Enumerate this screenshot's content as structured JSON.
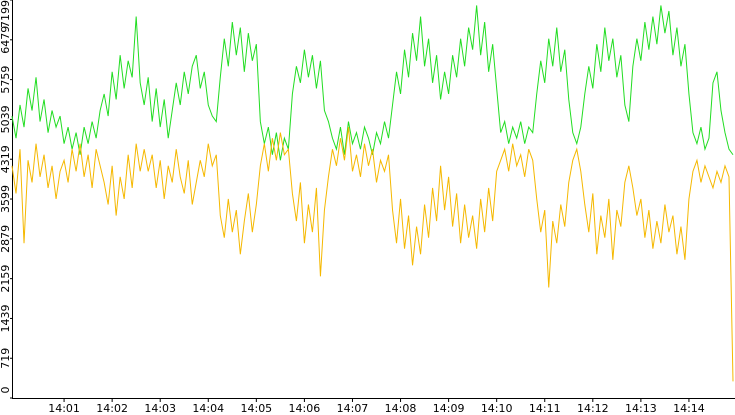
{
  "chart_data": {
    "type": "line",
    "categories": [
      null,
      null,
      null,
      null,
      null,
      null,
      null,
      null,
      null,
      null,
      null,
      null,
      null,
      "14:01",
      null,
      null,
      null,
      null,
      null,
      null,
      null,
      null,
      null,
      null,
      null,
      "14:02",
      null,
      null,
      null,
      null,
      null,
      null,
      null,
      null,
      null,
      null,
      null,
      "14:03",
      null,
      null,
      null,
      null,
      null,
      null,
      null,
      null,
      null,
      null,
      null,
      "14:04",
      null,
      null,
      null,
      null,
      null,
      null,
      null,
      null,
      null,
      null,
      null,
      "14:05",
      null,
      null,
      null,
      null,
      null,
      null,
      null,
      null,
      null,
      null,
      null,
      "14:06",
      null,
      null,
      null,
      null,
      null,
      null,
      null,
      null,
      null,
      null,
      null,
      "14:07",
      null,
      null,
      null,
      null,
      null,
      null,
      null,
      null,
      null,
      null,
      null,
      "14:08",
      null,
      null,
      null,
      null,
      null,
      null,
      null,
      null,
      null,
      null,
      null,
      "14:09",
      null,
      null,
      null,
      null,
      null,
      null,
      null,
      null,
      null,
      null,
      null,
      "14:10",
      null,
      null,
      null,
      null,
      null,
      null,
      null,
      null,
      null,
      null,
      null,
      "14:11",
      null,
      null,
      null,
      null,
      null,
      null,
      null,
      null,
      null,
      null,
      null,
      "14:12",
      null,
      null,
      null,
      null,
      null,
      null,
      null,
      null,
      null,
      null,
      null,
      "14:13",
      null,
      null,
      null,
      null,
      null,
      null,
      null,
      null,
      null,
      null,
      null,
      "14:14",
      null,
      null,
      null,
      null,
      null,
      null,
      null,
      null,
      null,
      null,
      null
    ],
    "series": [
      {
        "color": "#22dd22",
        "values": [
          5100,
          4700,
          5300,
          4900,
          5600,
          5200,
          5800,
          5000,
          5400,
          4800,
          5200,
          4900,
          5100,
          4600,
          4900,
          4500,
          4800,
          4400,
          4900,
          4600,
          5000,
          4700,
          5200,
          5500,
          5100,
          5900,
          5400,
          6200,
          5600,
          6100,
          5800,
          6900,
          5700,
          5300,
          5800,
          5000,
          5600,
          4900,
          5400,
          4700,
          5200,
          5700,
          5300,
          5900,
          5500,
          6000,
          6200,
          5600,
          5900,
          5300,
          5100,
          5000,
          5800,
          6500,
          6000,
          6800,
          6200,
          6700,
          5900,
          6600,
          6100,
          6400,
          5000,
          4600,
          4900,
          4400,
          4800,
          4300,
          4700,
          4500,
          5500,
          6000,
          5700,
          6300,
          5800,
          6200,
          5600,
          6100,
          5200,
          5000,
          4700,
          4500,
          4900,
          4400,
          5000,
          4600,
          4800,
          4500,
          4900,
          4700,
          4400,
          4800,
          4600,
          5000,
          4700,
          5300,
          5900,
          5500,
          6300,
          5800,
          6600,
          6100,
          6900,
          6000,
          6500,
          5700,
          6200,
          5400,
          5900,
          5500,
          6200,
          5800,
          6500,
          6000,
          6700,
          6300,
          7100,
          6200,
          6800,
          5900,
          6400,
          5600,
          4800,
          5000,
          4600,
          4900,
          4700,
          5000,
          4600,
          4900,
          4800,
          5500,
          6100,
          5700,
          6500,
          6000,
          6700,
          5900,
          6300,
          5400,
          4800,
          4600,
          4900,
          5500,
          6000,
          5600,
          6400,
          5900,
          6700,
          6100,
          6500,
          5800,
          6200,
          5300,
          5000,
          6000,
          6500,
          6100,
          6800,
          6300,
          6900,
          6400,
          7100,
          6600,
          7000,
          6200,
          6700,
          6000,
          6400,
          5500,
          4800,
          4600,
          4900,
          4500,
          4700,
          5700,
          5900,
          5200,
          4800,
          4500,
          4400
        ]
      },
      {
        "color": "#f5b800",
        "values": [
          4200,
          3700,
          4500,
          2800,
          4300,
          3900,
          4600,
          4000,
          4400,
          3800,
          4200,
          3600,
          4100,
          4300,
          3900,
          4500,
          4100,
          4600,
          4000,
          4400,
          3800,
          4500,
          4200,
          3900,
          3500,
          4200,
          3300,
          4000,
          3600,
          4400,
          3800,
          4600,
          4100,
          4500,
          4100,
          4400,
          3800,
          4300,
          3600,
          4200,
          3900,
          4500,
          4000,
          3700,
          4300,
          3500,
          3900,
          4300,
          4000,
          4600,
          4200,
          4400,
          3300,
          2900,
          3600,
          3000,
          3400,
          2600,
          3200,
          3700,
          3000,
          3500,
          4200,
          4600,
          4100,
          4700,
          4300,
          4800,
          4400,
          4500,
          3700,
          3200,
          3900,
          2800,
          3500,
          3000,
          3800,
          2200,
          3400,
          4000,
          4500,
          4200,
          4700,
          4300,
          4900,
          4100,
          4400,
          4000,
          4600,
          4200,
          4500,
          3900,
          4300,
          4100,
          4400,
          3400,
          2800,
          3600,
          2700,
          3300,
          2400,
          3100,
          2600,
          3500,
          2900,
          3800,
          3200,
          4200,
          3400,
          4000,
          3100,
          3700,
          2800,
          3500,
          2900,
          3300,
          2700,
          3600,
          3000,
          3800,
          3200,
          4100,
          4300,
          4500,
          4100,
          4600,
          4200,
          4400,
          4000,
          4500,
          4300,
          3600,
          3000,
          3400,
          2000,
          3200,
          2800,
          3500,
          3100,
          3900,
          4300,
          4500,
          4100,
          3500,
          3000,
          3700,
          2600,
          3300,
          2900,
          3600,
          2500,
          3400,
          3100,
          3900,
          4200,
          3800,
          3300,
          3600,
          2900,
          3400,
          2700,
          3200,
          2800,
          3500,
          3000,
          3300,
          2600,
          3100,
          2500,
          3600,
          4100,
          4300,
          3900,
          4200,
          4000,
          3800,
          4100,
          3900,
          4200,
          4000,
          300
        ]
      }
    ],
    "ylim": [
      0,
      7199
    ],
    "yticks": [
      0,
      719,
      1439,
      2159,
      2879,
      3599,
      4319,
      5039,
      5759,
      6479,
      7199
    ]
  }
}
